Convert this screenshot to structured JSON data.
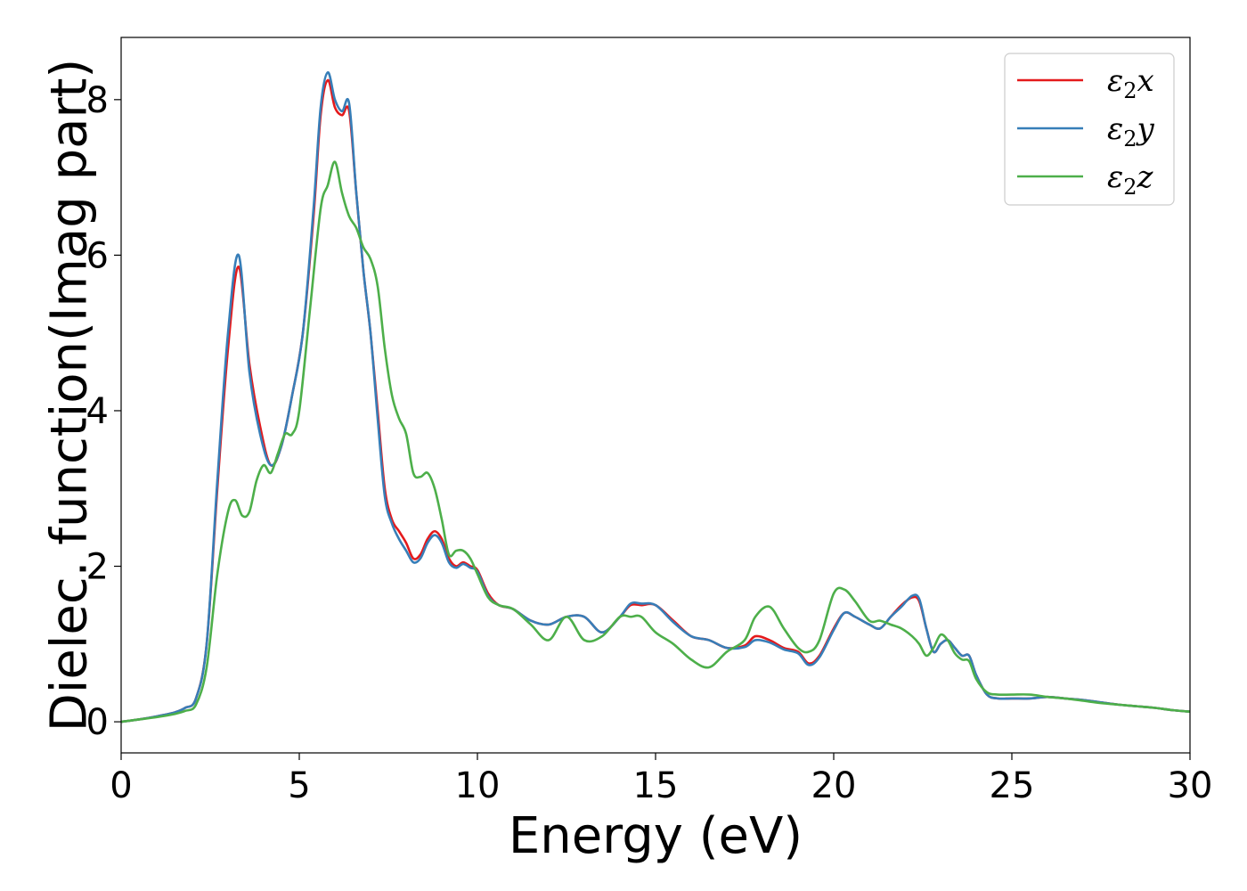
{
  "chart_data": {
    "type": "line",
    "xlabel": "Energy (eV)",
    "ylabel": "Dielec. function(Imag part)",
    "xlim": [
      0,
      30
    ],
    "ylim": [
      -0.4,
      8.8
    ],
    "xticks": [
      0,
      5,
      10,
      15,
      20,
      25,
      30
    ],
    "yticks": [
      0,
      2,
      4,
      6,
      8
    ],
    "grid": false,
    "legend_position": "top-right",
    "series": [
      {
        "name": "ε₂x",
        "legend_base": "ε",
        "legend_sub": "2",
        "legend_var": "x",
        "color": "#e41a1c",
        "x": [
          0,
          0.5,
          1,
          1.5,
          1.8,
          2.1,
          2.4,
          2.7,
          3.0,
          3.3,
          3.6,
          3.9,
          4.2,
          4.5,
          4.8,
          5.1,
          5.4,
          5.6,
          5.8,
          6.0,
          6.2,
          6.4,
          6.6,
          6.8,
          7.0,
          7.2,
          7.4,
          7.6,
          7.8,
          8.0,
          8.2,
          8.4,
          8.6,
          8.8,
          9.0,
          9.2,
          9.4,
          9.6,
          9.8,
          10.0,
          10.3,
          10.6,
          11.0,
          11.5,
          12.0,
          12.5,
          13.0,
          13.5,
          14.0,
          14.3,
          14.6,
          15.0,
          15.5,
          16.0,
          16.5,
          17.0,
          17.5,
          17.8,
          18.2,
          18.6,
          19.0,
          19.3,
          19.6,
          20.0,
          20.3,
          20.6,
          21.0,
          21.3,
          21.6,
          21.9,
          22.2,
          22.4,
          22.6,
          22.8,
          23.0,
          23.2,
          23.4,
          23.6,
          23.8,
          24.0,
          24.3,
          24.6,
          25.0,
          25.5,
          26.0,
          26.5,
          27.0,
          27.5,
          28.0,
          28.5,
          29.0,
          29.5,
          30.0
        ],
        "y": [
          0.0,
          0.03,
          0.07,
          0.12,
          0.18,
          0.3,
          1.0,
          3.0,
          4.8,
          5.85,
          4.6,
          3.8,
          3.3,
          3.55,
          4.2,
          5.0,
          6.5,
          7.8,
          8.25,
          7.9,
          7.8,
          7.85,
          6.8,
          5.8,
          5.0,
          4.0,
          3.0,
          2.6,
          2.45,
          2.3,
          2.1,
          2.15,
          2.35,
          2.45,
          2.35,
          2.1,
          2.0,
          2.05,
          2.0,
          1.95,
          1.65,
          1.5,
          1.45,
          1.3,
          1.25,
          1.35,
          1.35,
          1.15,
          1.35,
          1.5,
          1.5,
          1.5,
          1.3,
          1.1,
          1.05,
          0.95,
          0.98,
          1.1,
          1.05,
          0.95,
          0.9,
          0.75,
          0.85,
          1.2,
          1.4,
          1.35,
          1.25,
          1.2,
          1.35,
          1.5,
          1.6,
          1.55,
          1.2,
          0.9,
          1.0,
          1.05,
          0.95,
          0.85,
          0.85,
          0.6,
          0.35,
          0.3,
          0.3,
          0.3,
          0.32,
          0.3,
          0.28,
          0.25,
          0.22,
          0.2,
          0.18,
          0.15,
          0.13
        ]
      },
      {
        "name": "ε₂y",
        "legend_base": "ε",
        "legend_sub": "2",
        "legend_var": "y",
        "color": "#377eb8",
        "x": [
          0,
          0.5,
          1,
          1.5,
          1.8,
          2.1,
          2.4,
          2.7,
          3.0,
          3.3,
          3.6,
          3.9,
          4.2,
          4.5,
          4.8,
          5.1,
          5.4,
          5.6,
          5.8,
          6.0,
          6.2,
          6.4,
          6.6,
          6.8,
          7.0,
          7.2,
          7.4,
          7.6,
          7.8,
          8.0,
          8.2,
          8.4,
          8.6,
          8.8,
          9.0,
          9.2,
          9.4,
          9.6,
          9.8,
          10.0,
          10.3,
          10.6,
          11.0,
          11.5,
          12.0,
          12.5,
          13.0,
          13.5,
          14.0,
          14.3,
          14.6,
          15.0,
          15.5,
          16.0,
          16.5,
          17.0,
          17.5,
          17.8,
          18.2,
          18.6,
          19.0,
          19.3,
          19.6,
          20.0,
          20.3,
          20.6,
          21.0,
          21.3,
          21.6,
          21.9,
          22.2,
          22.4,
          22.6,
          22.8,
          23.0,
          23.2,
          23.4,
          23.6,
          23.8,
          24.0,
          24.3,
          24.6,
          25.0,
          25.5,
          26.0,
          26.5,
          27.0,
          27.5,
          28.0,
          28.5,
          29.0,
          29.5,
          30.0
        ],
        "y": [
          0.0,
          0.03,
          0.07,
          0.12,
          0.18,
          0.3,
          1.0,
          3.1,
          5.0,
          6.0,
          4.5,
          3.7,
          3.3,
          3.55,
          4.2,
          5.0,
          6.6,
          7.9,
          8.35,
          8.0,
          7.85,
          7.95,
          6.8,
          5.8,
          5.0,
          3.9,
          2.9,
          2.55,
          2.35,
          2.2,
          2.05,
          2.1,
          2.3,
          2.4,
          2.3,
          2.05,
          1.98,
          2.03,
          1.98,
          1.93,
          1.62,
          1.5,
          1.45,
          1.3,
          1.25,
          1.35,
          1.35,
          1.15,
          1.35,
          1.52,
          1.52,
          1.5,
          1.28,
          1.1,
          1.05,
          0.95,
          0.96,
          1.05,
          1.02,
          0.93,
          0.88,
          0.73,
          0.83,
          1.18,
          1.4,
          1.35,
          1.25,
          1.2,
          1.35,
          1.48,
          1.62,
          1.58,
          1.2,
          0.9,
          1.0,
          1.05,
          0.95,
          0.85,
          0.85,
          0.6,
          0.35,
          0.3,
          0.3,
          0.3,
          0.32,
          0.3,
          0.28,
          0.25,
          0.22,
          0.2,
          0.18,
          0.15,
          0.13
        ]
      },
      {
        "name": "ε₂z",
        "legend_base": "ε",
        "legend_sub": "2",
        "legend_var": "z",
        "color": "#4daf4a",
        "x": [
          0,
          0.5,
          1,
          1.5,
          1.8,
          2.1,
          2.4,
          2.7,
          3.0,
          3.2,
          3.4,
          3.6,
          3.8,
          4.0,
          4.2,
          4.4,
          4.6,
          4.8,
          5.0,
          5.3,
          5.6,
          5.8,
          6.0,
          6.2,
          6.4,
          6.6,
          6.8,
          7.0,
          7.2,
          7.4,
          7.6,
          7.8,
          8.0,
          8.2,
          8.4,
          8.6,
          8.8,
          9.0,
          9.2,
          9.4,
          9.6,
          9.8,
          10.0,
          10.3,
          10.6,
          11.0,
          11.5,
          12.0,
          12.5,
          13.0,
          13.5,
          14.0,
          14.3,
          14.6,
          15.0,
          15.5,
          16.0,
          16.5,
          17.0,
          17.5,
          17.8,
          18.2,
          18.6,
          19.0,
          19.3,
          19.6,
          20.0,
          20.3,
          20.6,
          21.0,
          21.3,
          21.6,
          21.9,
          22.2,
          22.4,
          22.6,
          22.8,
          23.0,
          23.2,
          23.4,
          23.6,
          23.8,
          24.0,
          24.3,
          24.6,
          25.0,
          25.5,
          26.0,
          26.5,
          27.0,
          27.5,
          28.0,
          28.5,
          29.0,
          29.5,
          30.0
        ],
        "y": [
          0.0,
          0.03,
          0.06,
          0.1,
          0.14,
          0.22,
          0.7,
          1.9,
          2.7,
          2.85,
          2.65,
          2.7,
          3.1,
          3.3,
          3.2,
          3.45,
          3.7,
          3.7,
          4.0,
          5.3,
          6.6,
          6.9,
          7.2,
          6.8,
          6.5,
          6.35,
          6.1,
          5.95,
          5.6,
          4.8,
          4.2,
          3.9,
          3.7,
          3.2,
          3.15,
          3.2,
          3.0,
          2.6,
          2.15,
          2.2,
          2.2,
          2.1,
          1.9,
          1.6,
          1.5,
          1.45,
          1.25,
          1.05,
          1.35,
          1.05,
          1.1,
          1.35,
          1.35,
          1.35,
          1.15,
          1.0,
          0.8,
          0.7,
          0.9,
          1.05,
          1.35,
          1.48,
          1.2,
          0.95,
          0.9,
          1.05,
          1.65,
          1.7,
          1.55,
          1.3,
          1.3,
          1.25,
          1.2,
          1.1,
          1.0,
          0.85,
          0.95,
          1.12,
          1.05,
          0.88,
          0.8,
          0.78,
          0.55,
          0.38,
          0.35,
          0.35,
          0.35,
          0.32,
          0.3,
          0.27,
          0.24,
          0.22,
          0.2,
          0.18,
          0.15,
          0.13
        ]
      }
    ]
  }
}
